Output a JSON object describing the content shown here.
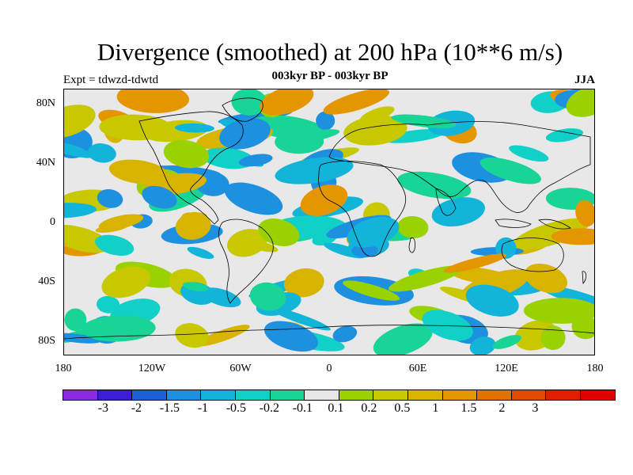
{
  "header": {
    "title": "Divergence (smoothed) at 200 hPa (10**6 m/s)",
    "subtitle": "003kyr BP - 003kyr BP",
    "left_label": "Expt = tdwzd-tdwtd",
    "right_label": "JJA"
  },
  "axes": {
    "lat_labels": [
      "80N",
      "40N",
      "0",
      "40S",
      "80S"
    ],
    "lon_labels": [
      "180",
      "120W",
      "60W",
      "0",
      "60E",
      "120E",
      "180"
    ]
  },
  "colorbar": {
    "colors": [
      "#8a2be2",
      "#3a1fd6",
      "#1e5fd8",
      "#1e90e0",
      "#12b4d9",
      "#10d0c8",
      "#18d496",
      "#e6e6e6",
      "#99d200",
      "#c8c800",
      "#d8b400",
      "#e49600",
      "#e07200",
      "#e04a00",
      "#e01e00",
      "#e00000"
    ],
    "labels": [
      "-3",
      "-2",
      "-1.5",
      "-1",
      "-0.5",
      "-0.2",
      "-0.1",
      "0.1",
      "0.2",
      "0.5",
      "1",
      "1.5",
      "2",
      "3"
    ]
  }
}
